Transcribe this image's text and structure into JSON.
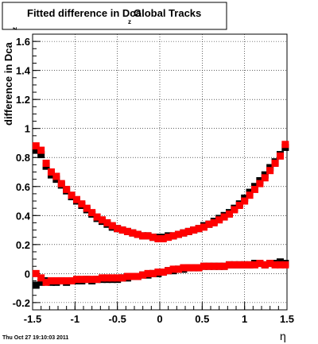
{
  "chart_data": {
    "type": "scatter",
    "title_main": "Fitted difference in Dca",
    "title_sub": "z",
    "title_suffix": "Global Tracks",
    "ylabel_main": "difference in Dca",
    "ylabel_sub": "z",
    "xlabel": "η",
    "xlim": [
      -1.5,
      1.5
    ],
    "ylim": [
      -0.25,
      1.65
    ],
    "grid": true,
    "x_tick_labels": [
      "-1.5",
      "-1",
      "-0.5",
      "0",
      "0.5",
      "1",
      "1.5"
    ],
    "y_tick_labels": [
      "-0.2",
      "0",
      "0.2",
      "0.4",
      "0.6",
      "0.8",
      "1",
      "1.2",
      "1.4",
      "1.6"
    ],
    "series": [
      {
        "marker": "square",
        "color": "#000000",
        "x": [
          -1.46,
          -1.4,
          -1.34,
          -1.28,
          -1.22,
          -1.16,
          -1.1,
          -1.04,
          -0.98,
          -0.92,
          -0.86,
          -0.8,
          -0.74,
          -0.68,
          -0.62,
          -0.56,
          -0.5,
          -0.44,
          -0.38,
          -0.32,
          -0.26,
          -0.2,
          -0.14,
          -0.08,
          -0.02,
          0.04,
          0.1,
          0.16,
          0.22,
          0.28,
          0.34,
          0.4,
          0.46,
          0.52,
          0.58,
          0.64,
          0.7,
          0.76,
          0.82,
          0.88,
          0.94,
          1.0,
          1.06,
          1.12,
          1.18,
          1.24,
          1.3,
          1.36,
          1.42,
          1.48
        ],
        "y": [
          0.85,
          0.82,
          0.74,
          0.68,
          0.65,
          0.61,
          0.57,
          0.53,
          0.5,
          0.47,
          0.44,
          0.41,
          0.38,
          0.36,
          0.34,
          0.32,
          0.31,
          0.3,
          0.29,
          0.28,
          0.27,
          0.26,
          0.26,
          0.25,
          0.25,
          0.25,
          0.26,
          0.26,
          0.27,
          0.28,
          0.29,
          0.3,
          0.31,
          0.33,
          0.34,
          0.36,
          0.38,
          0.4,
          0.42,
          0.45,
          0.48,
          0.52,
          0.56,
          0.6,
          0.64,
          0.68,
          0.73,
          0.77,
          0.82,
          0.87
        ]
      },
      {
        "marker": "square",
        "color": "#ff0000",
        "x": [
          -1.46,
          -1.4,
          -1.34,
          -1.28,
          -1.22,
          -1.16,
          -1.1,
          -1.04,
          -0.98,
          -0.92,
          -0.86,
          -0.8,
          -0.74,
          -0.68,
          -0.62,
          -0.56,
          -0.5,
          -0.44,
          -0.38,
          -0.32,
          -0.26,
          -0.2,
          -0.14,
          -0.08,
          -0.02,
          0.04,
          0.1,
          0.16,
          0.22,
          0.28,
          0.34,
          0.4,
          0.46,
          0.52,
          0.58,
          0.64,
          0.7,
          0.76,
          0.82,
          0.88,
          0.94,
          1.0,
          1.06,
          1.12,
          1.18,
          1.24,
          1.3,
          1.36,
          1.42,
          1.48
        ],
        "y": [
          0.88,
          0.85,
          0.76,
          0.7,
          0.67,
          0.62,
          0.58,
          0.54,
          0.51,
          0.48,
          0.45,
          0.42,
          0.39,
          0.37,
          0.35,
          0.33,
          0.31,
          0.3,
          0.29,
          0.28,
          0.27,
          0.26,
          0.26,
          0.25,
          0.24,
          0.24,
          0.25,
          0.26,
          0.27,
          0.28,
          0.29,
          0.3,
          0.31,
          0.32,
          0.34,
          0.35,
          0.37,
          0.39,
          0.41,
          0.44,
          0.47,
          0.5,
          0.54,
          0.58,
          0.62,
          0.66,
          0.71,
          0.76,
          0.81,
          0.89
        ]
      },
      {
        "marker": "square",
        "color": "#000000",
        "x": [
          -1.46,
          -1.4,
          -1.34,
          -1.28,
          -1.22,
          -1.16,
          -1.1,
          -1.04,
          -0.98,
          -0.92,
          -0.86,
          -0.8,
          -0.74,
          -0.68,
          -0.62,
          -0.56,
          -0.5,
          -0.44,
          -0.38,
          -0.32,
          -0.26,
          -0.2,
          -0.14,
          -0.08,
          -0.02,
          0.04,
          0.1,
          0.16,
          0.22,
          0.28,
          0.34,
          0.4,
          0.46,
          0.52,
          0.58,
          0.64,
          0.7,
          0.76,
          0.82,
          0.88,
          0.94,
          1.0,
          1.06,
          1.12,
          1.18,
          1.24,
          1.3,
          1.36,
          1.42,
          1.48
        ],
        "y": [
          -0.08,
          -0.06,
          -0.05,
          -0.06,
          -0.06,
          -0.05,
          -0.06,
          -0.05,
          -0.05,
          -0.05,
          -0.04,
          -0.05,
          -0.04,
          -0.04,
          -0.04,
          -0.04,
          -0.04,
          -0.03,
          -0.03,
          -0.02,
          -0.02,
          -0.01,
          -0.01,
          0.0,
          0.0,
          0.01,
          0.02,
          0.02,
          0.03,
          0.03,
          0.04,
          0.04,
          0.04,
          0.05,
          0.05,
          0.05,
          0.05,
          0.05,
          0.06,
          0.06,
          0.06,
          0.06,
          0.06,
          0.07,
          0.07,
          0.06,
          0.07,
          0.07,
          0.08,
          0.07
        ]
      },
      {
        "marker": "square",
        "color": "#ff0000",
        "x": [
          -1.46,
          -1.4,
          -1.34,
          -1.28,
          -1.22,
          -1.16,
          -1.1,
          -1.04,
          -0.98,
          -0.92,
          -0.86,
          -0.8,
          -0.74,
          -0.68,
          -0.62,
          -0.56,
          -0.5,
          -0.44,
          -0.38,
          -0.32,
          -0.26,
          -0.2,
          -0.14,
          -0.08,
          -0.02,
          0.04,
          0.1,
          0.16,
          0.22,
          0.28,
          0.34,
          0.4,
          0.46,
          0.52,
          0.58,
          0.64,
          0.7,
          0.76,
          0.82,
          0.88,
          0.94,
          1.0,
          1.06,
          1.12,
          1.18,
          1.24,
          1.3,
          1.36,
          1.42,
          1.48
        ],
        "y": [
          0.0,
          -0.03,
          -0.06,
          -0.05,
          -0.05,
          -0.05,
          -0.05,
          -0.05,
          -0.04,
          -0.04,
          -0.04,
          -0.04,
          -0.04,
          -0.03,
          -0.03,
          -0.03,
          -0.03,
          -0.03,
          -0.02,
          -0.02,
          -0.02,
          -0.01,
          0.0,
          0.0,
          0.01,
          0.01,
          0.02,
          0.03,
          0.03,
          0.04,
          0.04,
          0.04,
          0.04,
          0.05,
          0.05,
          0.05,
          0.05,
          0.05,
          0.06,
          0.06,
          0.06,
          0.06,
          0.06,
          0.06,
          0.07,
          0.06,
          0.07,
          0.06,
          0.06,
          0.06
        ]
      }
    ]
  },
  "footer": {
    "timestamp": "Thu Oct 27 19:10:03 2011"
  }
}
